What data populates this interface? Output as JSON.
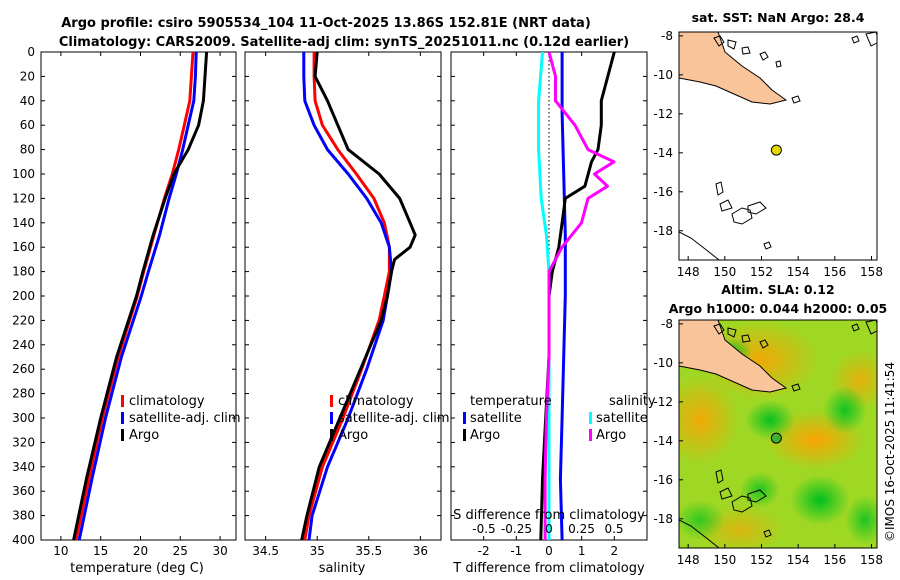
{
  "header": {
    "title_line1": "Argo profile: csiro 5905534_104 11-Oct-2025 13.86S 152.81E (NRT data)",
    "title_line2": "Climatology: CARS2009. Satellite-adj clim: synTS_20251011.nc (0.12d earlier)"
  },
  "colors": {
    "climatology": "#ff0000",
    "satellite": "#0000ff",
    "argo": "#000000",
    "sal_satellite": "#00ffff",
    "sal_argo": "#ff00ff",
    "land": "#f9c49a",
    "sla_low": "#00d000",
    "sla_high": "#ff9a00"
  },
  "depth_axis": {
    "ticks": [
      "0",
      "20",
      "40",
      "60",
      "80",
      "100",
      "120",
      "140",
      "160",
      "180",
      "200",
      "220",
      "240",
      "260",
      "280",
      "300",
      "320",
      "340",
      "360",
      "380",
      "400"
    ]
  },
  "chart_data": [
    {
      "type": "line",
      "name": "temperature panel",
      "xlabel": "temperature (deg C)",
      "ylabel": "depth",
      "xlim": [
        7.5,
        32
      ],
      "ylim": [
        400,
        0
      ],
      "xticks": [
        "10",
        "15",
        "20",
        "25",
        "30"
      ],
      "legend": [
        "climatology",
        "satellite-adj. clim",
        "Argo"
      ],
      "series": [
        {
          "name": "climatology",
          "depth": [
            0,
            20,
            40,
            60,
            80,
            100,
            120,
            150,
            180,
            200,
            250,
            300,
            350,
            400
          ],
          "values": [
            26.6,
            26.4,
            26.2,
            25.5,
            24.8,
            24.0,
            23.0,
            21.7,
            20.4,
            19.6,
            17.2,
            15.2,
            13.5,
            11.9
          ]
        },
        {
          "name": "satellite-adj. clim",
          "depth": [
            0,
            20,
            40,
            60,
            80,
            100,
            120,
            150,
            180,
            200,
            250,
            300,
            350,
            400
          ],
          "values": [
            27.0,
            26.9,
            26.7,
            26.0,
            25.3,
            24.5,
            23.6,
            22.4,
            21.0,
            20.1,
            17.6,
            15.6,
            13.9,
            12.3
          ]
        },
        {
          "name": "Argo",
          "depth": [
            0,
            20,
            40,
            60,
            80,
            100,
            120,
            150,
            180,
            200,
            250,
            300,
            350,
            400
          ],
          "values": [
            28.3,
            28.1,
            27.9,
            27.3,
            26.0,
            24.2,
            23.1,
            21.6,
            20.3,
            19.5,
            17.0,
            15.0,
            13.2,
            11.6
          ]
        }
      ]
    },
    {
      "type": "line",
      "name": "salinity panel",
      "xlabel": "salinity",
      "ylabel": "depth",
      "xlim": [
        34.3,
        36.2
      ],
      "ylim": [
        400,
        0
      ],
      "xticks": [
        "34.5",
        "35",
        "35.5",
        "36"
      ],
      "legend": [
        "climatology",
        "satellite-adj. clim",
        "Argo"
      ],
      "series": [
        {
          "name": "climatology",
          "depth": [
            0,
            20,
            40,
            60,
            80,
            100,
            120,
            140,
            160,
            180,
            200,
            220,
            260,
            300,
            340,
            380,
            400
          ],
          "values": [
            34.97,
            34.97,
            34.98,
            35.05,
            35.2,
            35.38,
            35.55,
            35.65,
            35.7,
            35.7,
            35.65,
            35.6,
            35.43,
            35.25,
            35.05,
            34.92,
            34.88
          ]
        },
        {
          "name": "satellite-adj. clim",
          "depth": [
            0,
            20,
            40,
            60,
            80,
            100,
            120,
            140,
            160,
            180,
            200,
            220,
            260,
            300,
            340,
            380,
            400
          ],
          "values": [
            34.87,
            34.87,
            34.88,
            34.97,
            35.1,
            35.3,
            35.48,
            35.62,
            35.7,
            35.72,
            35.68,
            35.64,
            35.48,
            35.3,
            35.1,
            34.95,
            34.92
          ]
        },
        {
          "name": "Argo",
          "depth": [
            0,
            20,
            40,
            60,
            80,
            100,
            120,
            140,
            150,
            160,
            170,
            180,
            200,
            220,
            260,
            300,
            340,
            380,
            400
          ],
          "values": [
            35.0,
            34.98,
            35.1,
            35.2,
            35.3,
            35.6,
            35.8,
            35.9,
            35.95,
            35.9,
            35.75,
            35.72,
            35.68,
            35.62,
            35.42,
            35.22,
            35.02,
            34.9,
            34.85
          ]
        }
      ]
    },
    {
      "type": "line",
      "name": "difference panel",
      "xlabel": "T difference from climatology",
      "xlabel2": "S difference from climatology",
      "xlim": [
        -3,
        3
      ],
      "ylim": [
        400,
        0
      ],
      "xticks": [
        "-2",
        "-1",
        "0",
        "1",
        "2"
      ],
      "xticks_s": [
        "-0.5",
        "-0.25",
        "0",
        "0.25",
        "0.5"
      ],
      "legend_temperature": [
        "temperature",
        "satellite",
        "Argo"
      ],
      "legend_salinity": [
        "salinity",
        "satellite",
        "Argo"
      ],
      "series": [
        {
          "name": "T satellite",
          "depth": [
            0,
            50,
            100,
            150,
            200,
            250,
            300,
            350,
            400
          ],
          "values": [
            0.4,
            0.4,
            0.45,
            0.5,
            0.5,
            0.45,
            0.4,
            0.35,
            0.4
          ]
        },
        {
          "name": "T Argo",
          "depth": [
            0,
            20,
            40,
            60,
            80,
            90,
            100,
            110,
            120,
            140,
            160,
            180,
            200,
            250,
            300,
            350,
            400
          ],
          "values": [
            2.0,
            1.8,
            1.6,
            1.6,
            1.5,
            1.3,
            1.2,
            1.1,
            0.5,
            0.4,
            0.3,
            0.1,
            0.0,
            0.0,
            -0.1,
            -0.2,
            -0.25
          ]
        },
        {
          "name": "S satellite",
          "depth": [
            0,
            40,
            80,
            120,
            150,
            180,
            200,
            250,
            300,
            350,
            400
          ],
          "values": [
            -0.05,
            -0.08,
            -0.08,
            -0.06,
            -0.02,
            0.0,
            0.0,
            0.0,
            0.0,
            0.0,
            0.0
          ]
        },
        {
          "name": "S Argo",
          "depth": [
            0,
            20,
            40,
            60,
            80,
            90,
            100,
            110,
            120,
            140,
            160,
            180,
            200,
            220,
            250,
            300,
            350,
            400
          ],
          "values": [
            0.0,
            0.05,
            0.05,
            0.2,
            0.3,
            0.5,
            0.35,
            0.45,
            0.3,
            0.25,
            0.1,
            0.0,
            0.0,
            0.0,
            0.0,
            -0.02,
            -0.03,
            -0.03
          ]
        }
      ]
    }
  ],
  "map_sst": {
    "title": "sat. SST: NaN Argo: 28.4",
    "xticks": [
      "148",
      "150",
      "152",
      "154",
      "156",
      "158"
    ],
    "yticks": [
      "-8",
      "-10",
      "-12",
      "-14",
      "-16",
      "-18"
    ],
    "float_lon": 152.81,
    "float_lat": -13.86
  },
  "map_sla": {
    "title1": "Altim. SLA: 0.12",
    "title2": "Argo h1000: 0.044 h2000: 0.05",
    "xticks": [
      "148",
      "150",
      "152",
      "154",
      "156",
      "158"
    ],
    "yticks": [
      "-8",
      "-10",
      "-12",
      "-14",
      "-16",
      "-18"
    ],
    "float_lon": 152.81,
    "float_lat": -13.86
  },
  "stamp": "©IMOS 16-Oct-2025 11:41:54"
}
